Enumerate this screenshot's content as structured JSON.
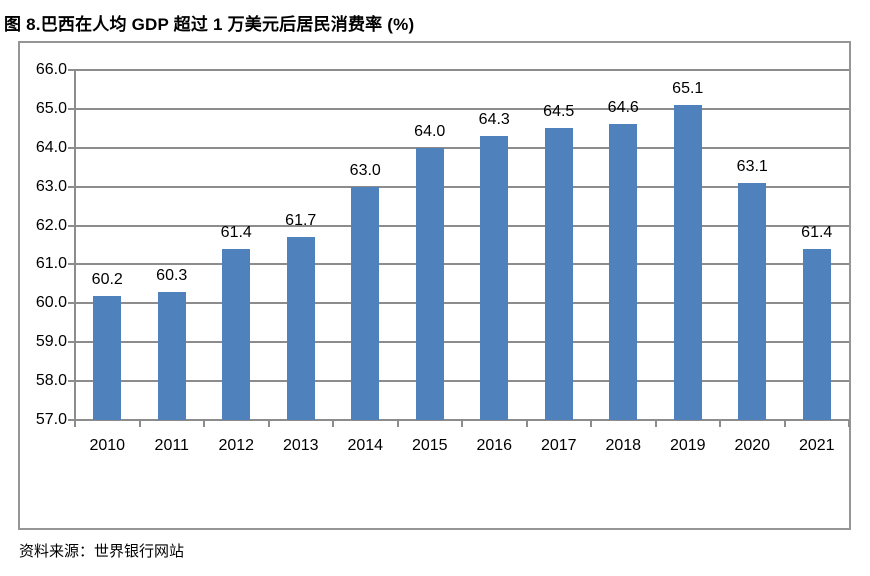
{
  "title": "图 8.巴西在人均 GDP 超过 1 万美元后居民消费率 (%)",
  "source": "资料来源：世界银行网站",
  "chart_data": {
    "type": "bar",
    "title": "图 8.巴西在人均 GDP 超过 1 万美元后居民消费率 (%)",
    "categories": [
      "2010",
      "2011",
      "2012",
      "2013",
      "2014",
      "2015",
      "2016",
      "2017",
      "2018",
      "2019",
      "2020",
      "2021"
    ],
    "values": [
      60.2,
      60.3,
      61.4,
      61.7,
      63.0,
      64.0,
      64.3,
      64.5,
      64.6,
      65.1,
      63.1,
      61.4
    ],
    "value_labels": [
      "60.2",
      "60.3",
      "61.4",
      "61.7",
      "63.0",
      "64.0",
      "64.3",
      "64.5",
      "64.6",
      "65.1",
      "63.1",
      "61.4"
    ],
    "xlabel": "",
    "ylabel": "",
    "ylim": [
      57.0,
      66.0
    ],
    "ytick_step": 1.0,
    "ytick_labels": [
      "57.0",
      "58.0",
      "59.0",
      "60.0",
      "61.0",
      "62.0",
      "63.0",
      "64.0",
      "65.0",
      "66.0"
    ],
    "grid": true,
    "legend": "none",
    "bar_color": "#4F81BD",
    "grid_color": "#8C8C8C",
    "axis_color": "#8C8C8C",
    "frame_border_color": "#969696",
    "text_color": "#000000"
  }
}
